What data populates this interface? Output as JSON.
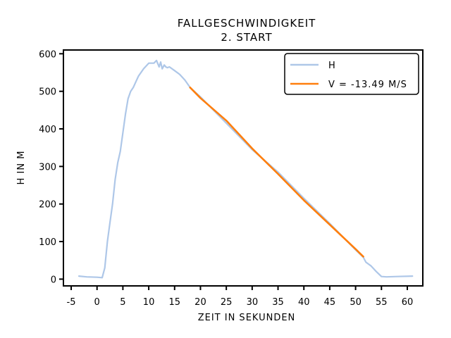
{
  "chart_data": {
    "type": "line",
    "title": "FALLGESCHWINDIGKEIT",
    "subtitle": "2. START",
    "xlabel": "ZEIT IN SEKUNDEN",
    "ylabel": "H IN M",
    "xlim": [
      -6.5,
      63
    ],
    "ylim": [
      -18,
      610
    ],
    "xticks": [
      -5,
      0,
      5,
      10,
      15,
      20,
      25,
      30,
      35,
      40,
      45,
      50,
      55,
      60
    ],
    "yticks": [
      0,
      100,
      200,
      300,
      400,
      500,
      600
    ],
    "xtick_labels": [
      "-5",
      "0",
      "5",
      "10",
      "15",
      "20",
      "25",
      "30",
      "35",
      "40",
      "45",
      "50",
      "55",
      "60"
    ],
    "ytick_labels": [
      "0",
      "100",
      "200",
      "300",
      "400",
      "500",
      "600"
    ],
    "grid": false,
    "legend_position": "top-right",
    "series": [
      {
        "name": "H",
        "color": "#aec7e8",
        "x": [
          -3.5,
          -2,
          0,
          1,
          1.5,
          2,
          2.5,
          3,
          3.5,
          4,
          4.5,
          5,
          5.5,
          6,
          6.5,
          7,
          7.5,
          8,
          9,
          10,
          11,
          11.5,
          12,
          12.3,
          12.6,
          13,
          13.3,
          13.6,
          14,
          15,
          16,
          17,
          18,
          20,
          25,
          30,
          35,
          40,
          45,
          50,
          51.5,
          52,
          53,
          54,
          55,
          56,
          58,
          61
        ],
        "y": [
          8,
          6,
          5,
          4,
          30,
          100,
          150,
          200,
          265,
          310,
          340,
          390,
          440,
          480,
          500,
          510,
          525,
          540,
          560,
          575,
          575,
          582,
          565,
          578,
          560,
          570,
          565,
          563,
          565,
          555,
          545,
          530,
          510,
          485,
          415,
          345,
          285,
          215,
          148,
          78,
          58,
          45,
          35,
          20,
          7,
          6,
          7,
          8
        ]
      },
      {
        "name": "V = -13.49 M/S",
        "color": "#ff7f0e",
        "x": [
          18,
          20,
          25,
          30,
          35,
          40,
          45,
          50,
          51.5
        ],
        "y": [
          510,
          482,
          422,
          348,
          280,
          210,
          145,
          80,
          60
        ]
      }
    ]
  }
}
